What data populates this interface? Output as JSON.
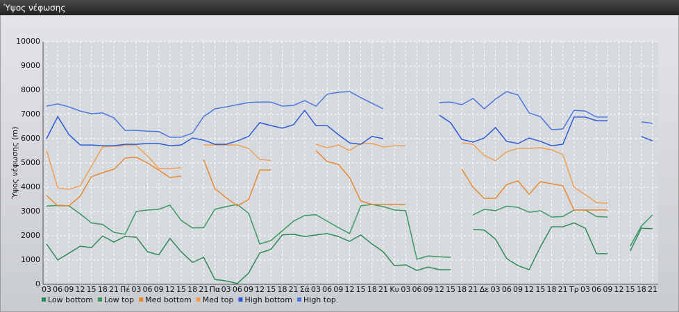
{
  "header": {
    "title": "Ύψος νέφωσης"
  },
  "chart_data": {
    "type": "line",
    "y_label": "Ύψος νέφωσης (m)",
    "categories": [
      "03",
      "06",
      "09",
      "12",
      "15",
      "18",
      "21",
      "Πέ",
      "03",
      "06",
      "09",
      "12",
      "15",
      "18",
      "21",
      "Πα",
      "03",
      "06",
      "09",
      "12",
      "15",
      "18",
      "21",
      "Σά",
      "03",
      "06",
      "09",
      "12",
      "15",
      "18",
      "21",
      "Κυ",
      "03",
      "06",
      "09",
      "12",
      "15",
      "18",
      "21",
      "Δε",
      "03",
      "06",
      "09",
      "12",
      "15",
      "18",
      "21",
      "Τρ",
      "03",
      "06",
      "09",
      "12",
      "15",
      "18",
      "21"
    ],
    "series": [
      {
        "name": "Low bottom",
        "color": "#2e8b57",
        "values": [
          1660,
          1000,
          1280,
          1570,
          1510,
          1990,
          1740,
          1970,
          1940,
          1340,
          1210,
          1890,
          1340,
          900,
          1110,
          200,
          140,
          30,
          460,
          1290,
          1440,
          2030,
          2060,
          1970,
          2030,
          2090,
          1970,
          1770,
          2030,
          1660,
          1340,
          760,
          800,
          570,
          710,
          600,
          600,
          null,
          2260,
          2230,
          1860,
          1060,
          770,
          600,
          1540,
          2370,
          2370,
          2530,
          2310,
          1260,
          1260,
          null,
          1370,
          2310,
          2290
        ]
      },
      {
        "name": "Low top",
        "color": "#3a9a62",
        "values": [
          3220,
          3250,
          3230,
          2900,
          2530,
          2460,
          2140,
          2060,
          3000,
          3060,
          3090,
          3260,
          2630,
          2320,
          2330,
          3090,
          3200,
          3290,
          2930,
          1660,
          1800,
          2200,
          2600,
          2830,
          2870,
          2600,
          2340,
          2090,
          3230,
          3290,
          3200,
          3060,
          3030,
          1030,
          1170,
          1130,
          1110,
          null,
          2860,
          3090,
          3030,
          3220,
          3170,
          2970,
          3030,
          2770,
          2790,
          3060,
          3060,
          2790,
          2770,
          null,
          1570,
          2400,
          2860
        ]
      },
      {
        "name": "Med bottom",
        "color": "#e8892d",
        "values": [
          3660,
          3230,
          3230,
          3630,
          4430,
          4600,
          4740,
          5200,
          5230,
          5000,
          4700,
          4400,
          4460,
          null,
          5140,
          3940,
          3570,
          3230,
          3490,
          4710,
          4710,
          null,
          null,
          null,
          5510,
          5060,
          4940,
          4400,
          3430,
          3290,
          3290,
          3290,
          3290,
          null,
          null,
          null,
          null,
          4740,
          4000,
          3540,
          3540,
          4110,
          4260,
          3710,
          4230,
          4140,
          4060,
          3060,
          3060,
          3060,
          3060,
          null,
          null,
          null,
          null
        ]
      },
      {
        "name": "Med top",
        "color": "#f0a050",
        "values": [
          5510,
          3970,
          3910,
          4060,
          4860,
          5660,
          5690,
          5710,
          5710,
          5290,
          4770,
          4770,
          4800,
          null,
          5740,
          5740,
          5740,
          5740,
          5600,
          5140,
          5110,
          null,
          null,
          null,
          5770,
          5630,
          5740,
          5510,
          5800,
          5800,
          5660,
          5710,
          5710,
          null,
          null,
          null,
          null,
          5830,
          5770,
          5310,
          5090,
          5460,
          5600,
          5600,
          5630,
          5540,
          5340,
          4000,
          3690,
          3370,
          3340,
          null,
          null,
          null,
          null
        ]
      },
      {
        "name": "High bottom",
        "color": "#2a5bd7",
        "values": [
          6000,
          6910,
          6170,
          5740,
          5740,
          5710,
          5710,
          5770,
          5770,
          5800,
          5800,
          5710,
          5740,
          6030,
          5940,
          5770,
          5770,
          5910,
          6090,
          6660,
          6540,
          6430,
          6570,
          7170,
          6540,
          6540,
          6170,
          5830,
          5770,
          6090,
          6000,
          null,
          null,
          null,
          null,
          6970,
          6660,
          5970,
          5860,
          6030,
          6460,
          5890,
          5800,
          6030,
          5890,
          5710,
          5770,
          6890,
          6890,
          6740,
          6740,
          null,
          null,
          6090,
          5910
        ]
      },
      {
        "name": "High top",
        "color": "#4a78e0",
        "values": [
          7340,
          7430,
          7310,
          7140,
          7030,
          7060,
          6860,
          6340,
          6340,
          6310,
          6290,
          6060,
          6060,
          6230,
          6910,
          7230,
          7310,
          7400,
          7490,
          7510,
          7510,
          7340,
          7370,
          7570,
          7340,
          7830,
          7910,
          7940,
          7690,
          7460,
          7230,
          null,
          null,
          null,
          null,
          7490,
          7510,
          7400,
          7660,
          7230,
          7630,
          7940,
          7800,
          7060,
          6910,
          6370,
          6400,
          7170,
          7140,
          6890,
          6890,
          null,
          null,
          6690,
          6630
        ]
      }
    ],
    "ylim": [
      0,
      10000
    ],
    "yticks": [
      0,
      1000,
      2000,
      3000,
      4000,
      5000,
      6000,
      7000,
      8000,
      9000,
      10000
    ],
    "grid": true
  }
}
